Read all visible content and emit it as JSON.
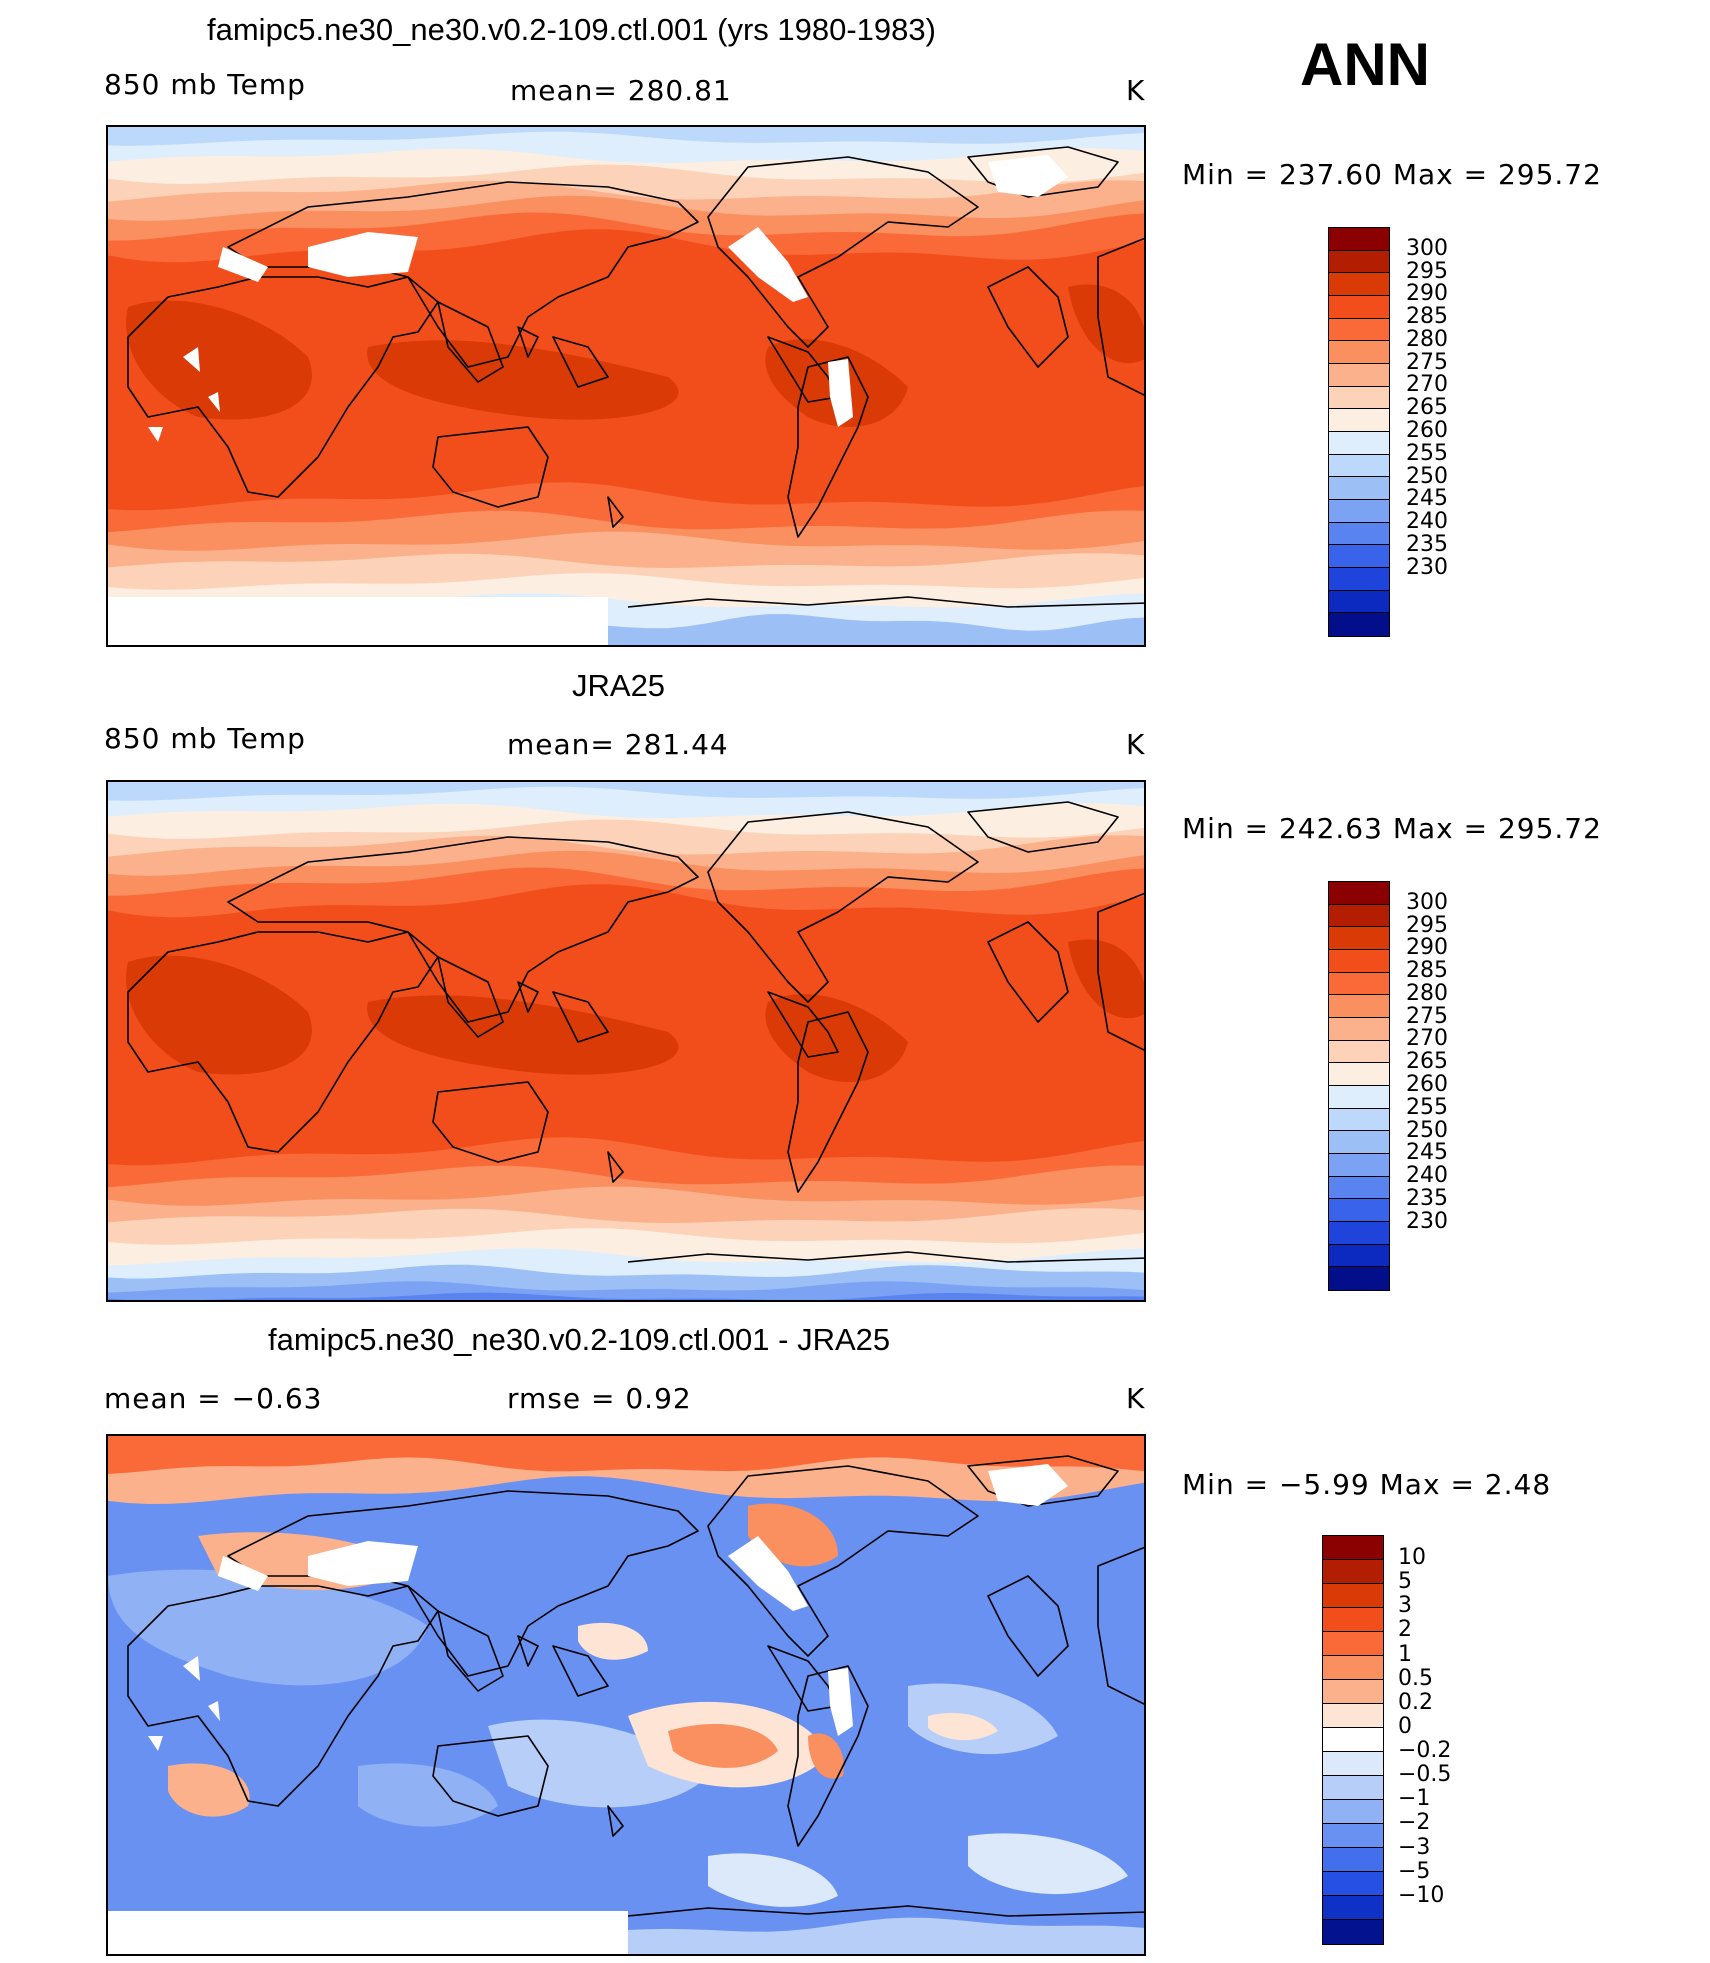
{
  "season": "ANN",
  "panels": [
    {
      "title": "famipc5.ne30_ne30.v0.2-109.ctl.001 (yrs 1980-1983)",
      "left_label": "850 mb Temp",
      "center_label": "mean=  280.81",
      "units": "K",
      "minmax": "Min  =  237.60  Max  =  295.72",
      "palette": "temp",
      "missing_land": true,
      "cold_south": false,
      "ticks": [
        "300",
        "295",
        "290",
        "285",
        "280",
        "275",
        "270",
        "265",
        "260",
        "255",
        "250",
        "245",
        "240",
        "235",
        "230"
      ]
    },
    {
      "title": "JRA25",
      "left_label": "850 mb Temp",
      "center_label": "mean=  281.44",
      "units": "K",
      "minmax": "Min  =  242.63  Max  =  295.72",
      "palette": "temp",
      "missing_land": false,
      "cold_south": true,
      "ticks": [
        "300",
        "295",
        "290",
        "285",
        "280",
        "275",
        "270",
        "265",
        "260",
        "255",
        "250",
        "245",
        "240",
        "235",
        "230"
      ]
    },
    {
      "title": "famipc5.ne30_ne30.v0.2-109.ctl.001 - JRA25",
      "left_label": "mean  =    −0.63",
      "center_label": "rmse  =     0.92",
      "units": "K",
      "minmax": "Min  =   −5.99  Max  =     2.48",
      "palette": "diff",
      "missing_land": true,
      "cold_south": false,
      "ticks": [
        "10",
        "5",
        "3",
        "2",
        "1",
        "0.5",
        "0.2",
        "0",
        "−0.2",
        "−0.5",
        "−1",
        "−2",
        "−3",
        "−5",
        "−10"
      ]
    }
  ],
  "colors": {
    "temp": [
      "#8b0000",
      "#b31e03",
      "#d93a06",
      "#f24e1c",
      "#f96a38",
      "#fa8f5f",
      "#fbb18c",
      "#fcd3b8",
      "#fdeee2",
      "#dfeefc",
      "#bcd8fa",
      "#9cbff6",
      "#7ca3f3",
      "#5984f0",
      "#3a63eb",
      "#1e44dc",
      "#0d2ac0",
      "#030f8a"
    ],
    "diff": [
      "#8b0000",
      "#b31e03",
      "#d93a06",
      "#f24e1c",
      "#f96a38",
      "#fa8f5f",
      "#fbb18c",
      "#fde4d4",
      "#ffffff",
      "#dbe9fb",
      "#b6cef8",
      "#90b1f4",
      "#6991f1",
      "#436fed",
      "#2550e3",
      "#1031c5",
      "#03128e"
    ],
    "land_outline": "#000000",
    "missing": "#ffffff"
  }
}
